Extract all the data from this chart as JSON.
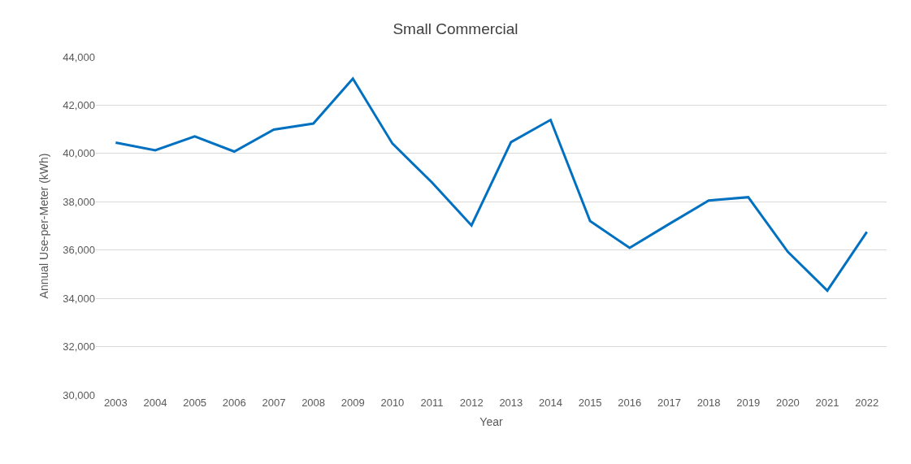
{
  "chart_data": {
    "type": "line",
    "title": "Small Commercial",
    "xlabel": "Year",
    "ylabel": "Annual Use-per-Meter (kWh)",
    "categories": [
      "2003",
      "2004",
      "2005",
      "2006",
      "2007",
      "2008",
      "2009",
      "2010",
      "2011",
      "2012",
      "2013",
      "2014",
      "2015",
      "2016",
      "2017",
      "2018",
      "2019",
      "2020",
      "2021",
      "2022"
    ],
    "series": [
      {
        "color": "#0070c0",
        "values": [
          40450,
          40130,
          40710,
          40080,
          40990,
          41240,
          43100,
          40410,
          38800,
          37020,
          40470,
          41390,
          37200,
          36090,
          37080,
          38050,
          38190,
          35930,
          34320,
          36750
        ]
      }
    ],
    "ylim": [
      30000,
      44000
    ],
    "yticks": [
      {
        "value": 30000,
        "label": "30,000"
      },
      {
        "value": 32000,
        "label": "32,000"
      },
      {
        "value": 34000,
        "label": "34,000"
      },
      {
        "value": 36000,
        "label": "36,000"
      },
      {
        "value": 38000,
        "label": "38,000"
      },
      {
        "value": 40000,
        "label": "40,000"
      },
      {
        "value": 42000,
        "label": "42,000"
      },
      {
        "value": 44000,
        "label": "44,000"
      }
    ],
    "grid": "y",
    "marker": "none",
    "line_style": "solid"
  }
}
